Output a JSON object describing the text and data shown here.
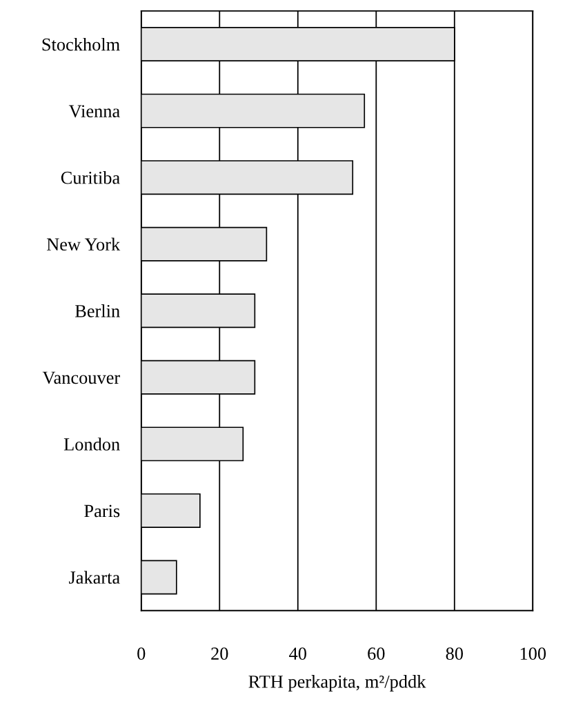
{
  "chart_data": {
    "type": "bar",
    "orientation": "horizontal",
    "categories": [
      "Stockholm",
      "Vienna",
      "Curitiba",
      "New York",
      "Berlin",
      "Vancouver",
      "London",
      "Paris",
      "Jakarta"
    ],
    "values": [
      80,
      57,
      54,
      32,
      29,
      29,
      26,
      15,
      9
    ],
    "color": "#e6e6e6",
    "xlabel": "RTH perkapita, m²/pddk",
    "xlim": [
      0,
      100
    ],
    "xticks": [
      0,
      20,
      40,
      60,
      80,
      100
    ],
    "grid": "x"
  }
}
